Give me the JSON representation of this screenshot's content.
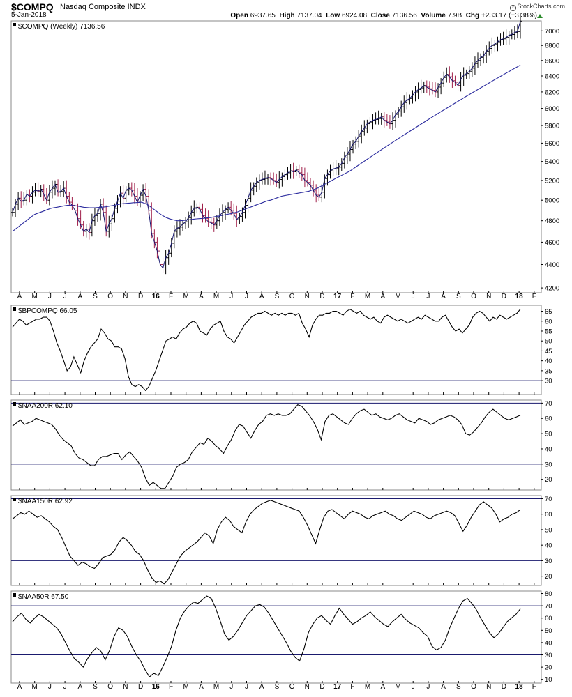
{
  "header": {
    "symbol": "$COMPQ",
    "name": "Nasdaq Composite INDX",
    "date": "5-Jan-2018",
    "open_label": "Open",
    "open": "6937.65",
    "high_label": "High",
    "high": "7137.04",
    "low_label": "Low",
    "low": "6924.08",
    "close_label": "Close",
    "close": "7136.56",
    "volume_label": "Volume",
    "volume": "7.9B",
    "chg_label": "Chg",
    "chg": "+233.17 (+3.38%)",
    "copyright": "StockCharts.com",
    "chg_color": "#2a8a2a"
  },
  "months": [
    "A",
    "M",
    "J",
    "J",
    "A",
    "S",
    "O",
    "N",
    "D",
    "16",
    "F",
    "M",
    "A",
    "M",
    "J",
    "J",
    "A",
    "S",
    "O",
    "N",
    "D",
    "17",
    "F",
    "M",
    "A",
    "M",
    "J",
    "J",
    "A",
    "S",
    "O",
    "N",
    "D",
    "18",
    "F"
  ],
  "chart_data": [
    {
      "type": "line",
      "panel": "price",
      "label": "$COMPQ (Weekly) 7136.56",
      "y_ticks": [
        4200,
        4400,
        4600,
        4800,
        5000,
        5200,
        5400,
        5600,
        5800,
        6000,
        6200,
        6400,
        6600,
        6800,
        7000
      ],
      "ylim": [
        4160,
        7140
      ],
      "log_scale": true,
      "series": [
        {
          "values": [
            4880,
            4960,
            5020,
            4990,
            5000,
            5060,
            5040,
            5080,
            5100,
            5090,
            5110,
            5060,
            5000,
            5080,
            5120,
            5160,
            5080,
            5090,
            5120,
            5040,
            4980,
            4950,
            4900,
            4820,
            4760,
            4700,
            4720,
            4690,
            4800,
            4850,
            4870,
            4960,
            4880,
            4700,
            4770,
            4820,
            4920,
            4990,
            5070,
            5020,
            5100,
            5120,
            5100,
            5040,
            4980,
            5050,
            5110,
            5040,
            4900,
            4680,
            4600,
            4520,
            4400,
            4370,
            4460,
            4500,
            4590,
            4700,
            4730,
            4740,
            4770,
            4790,
            4830,
            4880,
            4920,
            4930,
            4910,
            4850,
            4820,
            4790,
            4780,
            4760,
            4800,
            4850,
            4880,
            4910,
            4930,
            4900,
            4870,
            4810,
            4840,
            4880,
            4950,
            5020,
            5100,
            5140,
            5180,
            5200,
            5210,
            5220,
            5230,
            5220,
            5200,
            5180,
            5210,
            5240,
            5260,
            5280,
            5300,
            5290,
            5310,
            5280,
            5260,
            5200,
            5180,
            5150,
            5100,
            5050,
            5030,
            5080,
            5220,
            5260,
            5300,
            5320,
            5330,
            5340,
            5380,
            5440,
            5480,
            5530,
            5590,
            5620,
            5680,
            5730,
            5770,
            5820,
            5840,
            5860,
            5870,
            5880,
            5900,
            5860,
            5840,
            5820,
            5860,
            5930,
            5960,
            6020,
            6070,
            6100,
            6120,
            6160,
            6200,
            6230,
            6250,
            6280,
            6260,
            6240,
            6220,
            6200,
            6260,
            6310,
            6380,
            6420,
            6390,
            6340,
            6320,
            6280,
            6360,
            6410,
            6430,
            6460,
            6500,
            6560,
            6600,
            6640,
            6660,
            6720,
            6760,
            6800,
            6820,
            6850,
            6880,
            6890,
            6910,
            6940,
            6950,
            6980,
            6990,
            7136.56
          ]
        },
        {
          "name": "MA",
          "values": [
            4700,
            4720,
            4740,
            4760,
            4780,
            4800,
            4820,
            4840,
            4860,
            4870,
            4880,
            4890,
            4900,
            4910,
            4920,
            4925,
            4930,
            4935,
            4940,
            4945,
            4950,
            4950,
            4948,
            4945,
            4940,
            4935,
            4930,
            4928,
            4925,
            4925,
            4925,
            4928,
            4930,
            4932,
            4935,
            4940,
            4945,
            4950,
            4955,
            4960,
            4965,
            4968,
            4970,
            4972,
            4975,
            4976,
            4978,
            4980,
            4970,
            4960,
            4940,
            4920,
            4900,
            4880,
            4860,
            4845,
            4830,
            4820,
            4812,
            4805,
            4800,
            4800,
            4802,
            4805,
            4808,
            4812,
            4815,
            4818,
            4820,
            4822,
            4825,
            4828,
            4830,
            4835,
            4840,
            4845,
            4850,
            4855,
            4860,
            4865,
            4870,
            4878,
            4885,
            4895,
            4905,
            4915,
            4925,
            4935,
            4945,
            4955,
            4965,
            4975,
            4985,
            4995,
            5000,
            5010,
            5020,
            5030,
            5040,
            5045,
            5050,
            5055,
            5060,
            5065,
            5070,
            5075,
            5080,
            5085,
            5090,
            5100,
            5110,
            5120,
            5135,
            5150,
            5165,
            5180,
            5195,
            5210,
            5225,
            5240,
            5255,
            5270,
            5285,
            5300,
            5320,
            5340,
            5360,
            5380,
            5400,
            5420,
            5440,
            5460,
            5480,
            5500,
            5520,
            5540,
            5560,
            5580,
            5600,
            5620,
            5640,
            5660,
            5680,
            5700,
            5720,
            5740,
            5760,
            5780,
            5800,
            5820,
            5840,
            5860,
            5880,
            5900,
            5920,
            5940,
            5960,
            5980,
            6000,
            6020,
            6040,
            6060,
            6080,
            6100,
            6120,
            6140,
            6160,
            6180,
            6200,
            6220,
            6240,
            6260,
            6280,
            6300,
            6320,
            6340,
            6360,
            6380,
            6400,
            6420,
            6440,
            6460,
            6480,
            6500,
            6520,
            6540
          ]
        }
      ]
    },
    {
      "type": "line",
      "panel": "bp",
      "label": "$BPCOMPQ 66.05",
      "y_ticks": [
        30,
        35,
        40,
        45,
        50,
        55,
        60,
        65
      ],
      "ylim": [
        23,
        68
      ],
      "hlines": [
        30
      ],
      "series": [
        {
          "values": [
            57,
            59,
            61,
            60,
            58,
            59,
            60,
            61,
            61,
            62,
            62,
            60,
            55,
            49,
            45,
            40,
            35,
            37,
            42,
            38,
            34,
            40,
            44,
            47,
            49,
            51,
            56,
            54,
            51,
            50,
            47,
            47,
            46,
            41,
            32,
            28,
            27,
            28,
            27,
            25,
            27,
            31,
            35,
            40,
            45,
            50,
            51,
            52,
            51,
            54,
            56,
            57,
            59,
            60,
            59,
            55,
            54,
            53,
            56,
            58,
            59,
            60,
            55,
            52,
            51,
            49,
            52,
            55,
            58,
            60,
            62,
            63,
            64,
            64,
            65,
            64,
            63,
            64,
            63,
            64,
            63,
            64,
            64,
            63,
            64,
            59,
            56,
            52,
            58,
            61,
            63,
            63,
            64,
            64,
            65,
            65,
            64,
            63,
            65,
            66,
            65,
            64,
            65,
            63,
            62,
            61,
            62,
            60,
            59,
            62,
            63,
            62,
            61,
            60,
            61,
            60,
            59,
            60,
            61,
            62,
            61,
            63,
            62,
            61,
            60,
            60,
            62,
            63,
            60,
            57,
            55,
            56,
            54,
            56,
            58,
            62,
            64,
            65,
            64,
            62,
            60,
            62,
            61,
            63,
            62,
            61,
            62,
            63,
            64,
            66.05
          ]
        }
      ]
    },
    {
      "type": "line",
      "panel": "a200",
      "label": "$NAA200R 62.10",
      "y_ticks": [
        20,
        30,
        40,
        50,
        60,
        70
      ],
      "ylim": [
        13,
        72
      ],
      "hlines": [
        30,
        70
      ],
      "series": [
        {
          "values": [
            55,
            57,
            59,
            56,
            57,
            58,
            60,
            59,
            58,
            57,
            56,
            53,
            49,
            46,
            44,
            42,
            37,
            34,
            33,
            31,
            29,
            29,
            33,
            35,
            35,
            36,
            37,
            37,
            33,
            36,
            38,
            35,
            32,
            28,
            21,
            16,
            18,
            16,
            14,
            14,
            18,
            22,
            28,
            30,
            31,
            33,
            38,
            41,
            44,
            43,
            47,
            45,
            42,
            40,
            37,
            42,
            46,
            52,
            56,
            55,
            51,
            47,
            52,
            56,
            58,
            62,
            63,
            62,
            63,
            62,
            62,
            63,
            66,
            69,
            68,
            65,
            62,
            58,
            53,
            46,
            58,
            62,
            63,
            61,
            59,
            57,
            56,
            60,
            63,
            65,
            66,
            64,
            62,
            63,
            61,
            60,
            59,
            60,
            62,
            63,
            61,
            59,
            58,
            57,
            60,
            59,
            58,
            56,
            57,
            59,
            60,
            61,
            62,
            61,
            59,
            56,
            50,
            49,
            51,
            54,
            57,
            61,
            64,
            66,
            64,
            62,
            60,
            59,
            60,
            61,
            62.1
          ]
        }
      ]
    },
    {
      "type": "line",
      "panel": "a150",
      "label": "$NAA150R 62.92",
      "y_ticks": [
        20,
        30,
        40,
        50,
        60,
        70
      ],
      "ylim": [
        14,
        72
      ],
      "hlines": [
        30,
        70
      ],
      "series": [
        {
          "values": [
            57,
            59,
            61,
            60,
            62,
            60,
            58,
            59,
            57,
            55,
            52,
            50,
            45,
            39,
            33,
            30,
            27,
            29,
            28,
            26,
            25,
            28,
            32,
            33,
            34,
            37,
            42,
            45,
            43,
            40,
            36,
            34,
            30,
            24,
            19,
            16,
            17,
            15,
            18,
            23,
            28,
            33,
            36,
            38,
            40,
            42,
            45,
            48,
            46,
            41,
            50,
            55,
            58,
            56,
            52,
            50,
            48,
            55,
            60,
            63,
            65,
            67,
            68,
            69,
            68,
            67,
            66,
            65,
            64,
            63,
            62,
            58,
            53,
            47,
            41,
            50,
            58,
            62,
            63,
            61,
            59,
            57,
            60,
            62,
            61,
            60,
            58,
            57,
            59,
            60,
            61,
            62,
            60,
            59,
            57,
            56,
            58,
            60,
            62,
            61,
            60,
            58,
            57,
            59,
            60,
            61,
            62,
            61,
            59,
            54,
            49,
            53,
            58,
            62,
            66,
            68,
            66,
            64,
            60,
            55,
            57,
            58,
            60,
            61,
            62.92
          ]
        }
      ]
    },
    {
      "type": "line",
      "panel": "a50",
      "label": "$NAA50R 67.50",
      "y_ticks": [
        10,
        20,
        30,
        40,
        50,
        60,
        70,
        80
      ],
      "ylim": [
        7,
        82
      ],
      "hlines": [
        30,
        70
      ],
      "series": [
        {
          "values": [
            57,
            61,
            64,
            59,
            56,
            60,
            63,
            61,
            58,
            55,
            52,
            47,
            40,
            33,
            27,
            24,
            20,
            27,
            32,
            36,
            33,
            26,
            34,
            45,
            52,
            50,
            45,
            37,
            30,
            25,
            18,
            12,
            15,
            13,
            20,
            28,
            37,
            50,
            60,
            66,
            70,
            73,
            72,
            75,
            78,
            76,
            68,
            58,
            47,
            42,
            45,
            50,
            56,
            62,
            66,
            70,
            71,
            69,
            64,
            58,
            52,
            46,
            40,
            33,
            28,
            25,
            35,
            48,
            55,
            60,
            62,
            58,
            55,
            62,
            68,
            63,
            59,
            55,
            57,
            60,
            62,
            65,
            61,
            58,
            55,
            53,
            57,
            60,
            63,
            59,
            56,
            54,
            52,
            48,
            45,
            37,
            34,
            36,
            42,
            52,
            60,
            68,
            74,
            76,
            72,
            67,
            60,
            54,
            48,
            44,
            47,
            52,
            57,
            60,
            63,
            67.5
          ]
        }
      ]
    }
  ]
}
